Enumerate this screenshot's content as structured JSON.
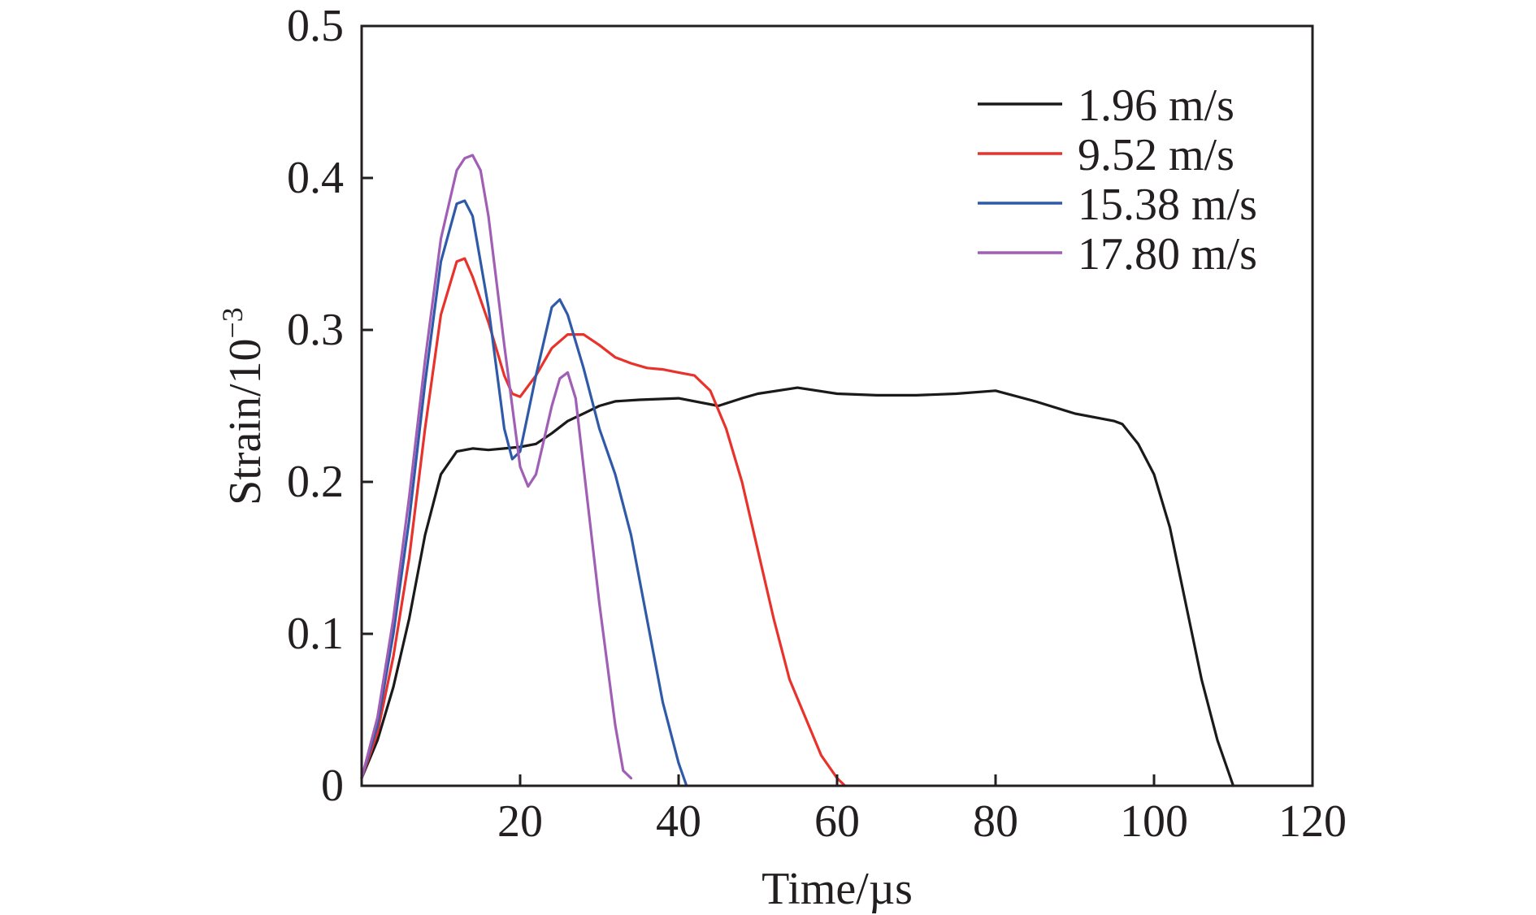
{
  "chart_data": {
    "type": "line",
    "title": "",
    "xlabel": "Time/µs",
    "ylabel_main": "Strain/10",
    "ylabel_sup": "−3",
    "xlim": [
      0,
      120
    ],
    "ylim": [
      0,
      0.5
    ],
    "xticks": [
      20,
      40,
      60,
      80,
      100,
      120
    ],
    "xtick_labels": [
      "20",
      "40",
      "60",
      "80",
      "100",
      "120"
    ],
    "yticks": [
      0,
      0.1,
      0.2,
      0.3,
      0.4,
      0.5
    ],
    "ytick_labels": [
      "0",
      "0.1",
      "0.2",
      "0.3",
      "0.4",
      "0.5"
    ],
    "grid": false,
    "legend_position": "top-right",
    "series": [
      {
        "name": "1.96 m/s",
        "color": "#1a1a1a",
        "x": [
          0,
          2,
          4,
          6,
          8,
          10,
          12,
          14,
          16,
          18,
          20,
          22,
          24,
          26,
          28,
          30,
          32,
          35,
          40,
          45,
          48,
          50,
          55,
          60,
          65,
          70,
          75,
          80,
          85,
          90,
          95,
          96,
          98,
          100,
          102,
          104,
          106,
          108,
          110
        ],
        "y": [
          0.005,
          0.03,
          0.065,
          0.11,
          0.165,
          0.205,
          0.22,
          0.222,
          0.221,
          0.222,
          0.223,
          0.225,
          0.232,
          0.24,
          0.245,
          0.25,
          0.253,
          0.254,
          0.255,
          0.25,
          0.255,
          0.258,
          0.262,
          0.258,
          0.257,
          0.257,
          0.258,
          0.26,
          0.253,
          0.245,
          0.24,
          0.238,
          0.225,
          0.205,
          0.17,
          0.12,
          0.07,
          0.03,
          0.0
        ]
      },
      {
        "name": "9.52 m/s",
        "color": "#e8322b",
        "x": [
          0,
          2,
          4,
          6,
          8,
          10,
          12,
          13,
          14,
          16,
          18,
          19,
          20,
          22,
          24,
          26,
          28,
          30,
          32,
          34,
          36,
          38,
          40,
          42,
          44,
          46,
          48,
          50,
          52,
          54,
          56,
          58,
          60,
          61
        ],
        "y": [
          0.005,
          0.035,
          0.085,
          0.15,
          0.235,
          0.31,
          0.345,
          0.347,
          0.335,
          0.305,
          0.27,
          0.258,
          0.256,
          0.27,
          0.288,
          0.297,
          0.297,
          0.29,
          0.282,
          0.278,
          0.275,
          0.274,
          0.272,
          0.27,
          0.26,
          0.235,
          0.2,
          0.155,
          0.11,
          0.07,
          0.045,
          0.02,
          0.005,
          0.0
        ]
      },
      {
        "name": "15.38 m/s",
        "color": "#2f5aa8",
        "x": [
          0,
          2,
          4,
          6,
          8,
          10,
          12,
          13,
          14,
          16,
          18,
          19,
          20,
          22,
          24,
          25,
          26,
          28,
          30,
          32,
          34,
          36,
          38,
          40,
          41
        ],
        "y": [
          0.005,
          0.04,
          0.1,
          0.175,
          0.265,
          0.345,
          0.383,
          0.385,
          0.375,
          0.315,
          0.235,
          0.215,
          0.22,
          0.27,
          0.315,
          0.32,
          0.31,
          0.275,
          0.235,
          0.205,
          0.165,
          0.11,
          0.055,
          0.015,
          0.0
        ]
      },
      {
        "name": "17.80 m/s",
        "color": "#a05fb5",
        "x": [
          0,
          2,
          4,
          6,
          8,
          10,
          12,
          13,
          14,
          15,
          16,
          18,
          20,
          21,
          22,
          24,
          25,
          26,
          27,
          28,
          30,
          32,
          33,
          34
        ],
        "y": [
          0.005,
          0.045,
          0.11,
          0.19,
          0.28,
          0.36,
          0.405,
          0.413,
          0.415,
          0.405,
          0.375,
          0.29,
          0.21,
          0.197,
          0.205,
          0.25,
          0.268,
          0.272,
          0.255,
          0.21,
          0.12,
          0.04,
          0.01,
          0.005
        ]
      }
    ]
  }
}
